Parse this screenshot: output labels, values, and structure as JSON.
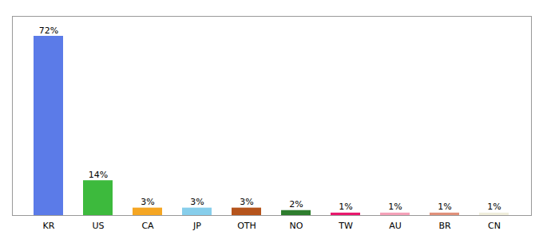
{
  "chart_data": {
    "type": "bar",
    "categories": [
      "KR",
      "US",
      "CA",
      "JP",
      "OTH",
      "NO",
      "TW",
      "AU",
      "BR",
      "CN"
    ],
    "values": [
      72,
      14,
      3,
      3,
      3,
      2,
      1,
      1,
      1,
      1
    ],
    "value_labels": [
      "72%",
      "14%",
      "3%",
      "3%",
      "3%",
      "2%",
      "1%",
      "1%",
      "1%",
      "1%"
    ],
    "colors": [
      "#5b7be8",
      "#3dba3d",
      "#f5a623",
      "#87ceeb",
      "#b5541c",
      "#2e7d2e",
      "#e8186d",
      "#f4a0b8",
      "#e0907a",
      "#f0eedc"
    ],
    "data_labels": true,
    "ylim": [
      0,
      80
    ],
    "grid": false,
    "tick_labels": "x"
  }
}
